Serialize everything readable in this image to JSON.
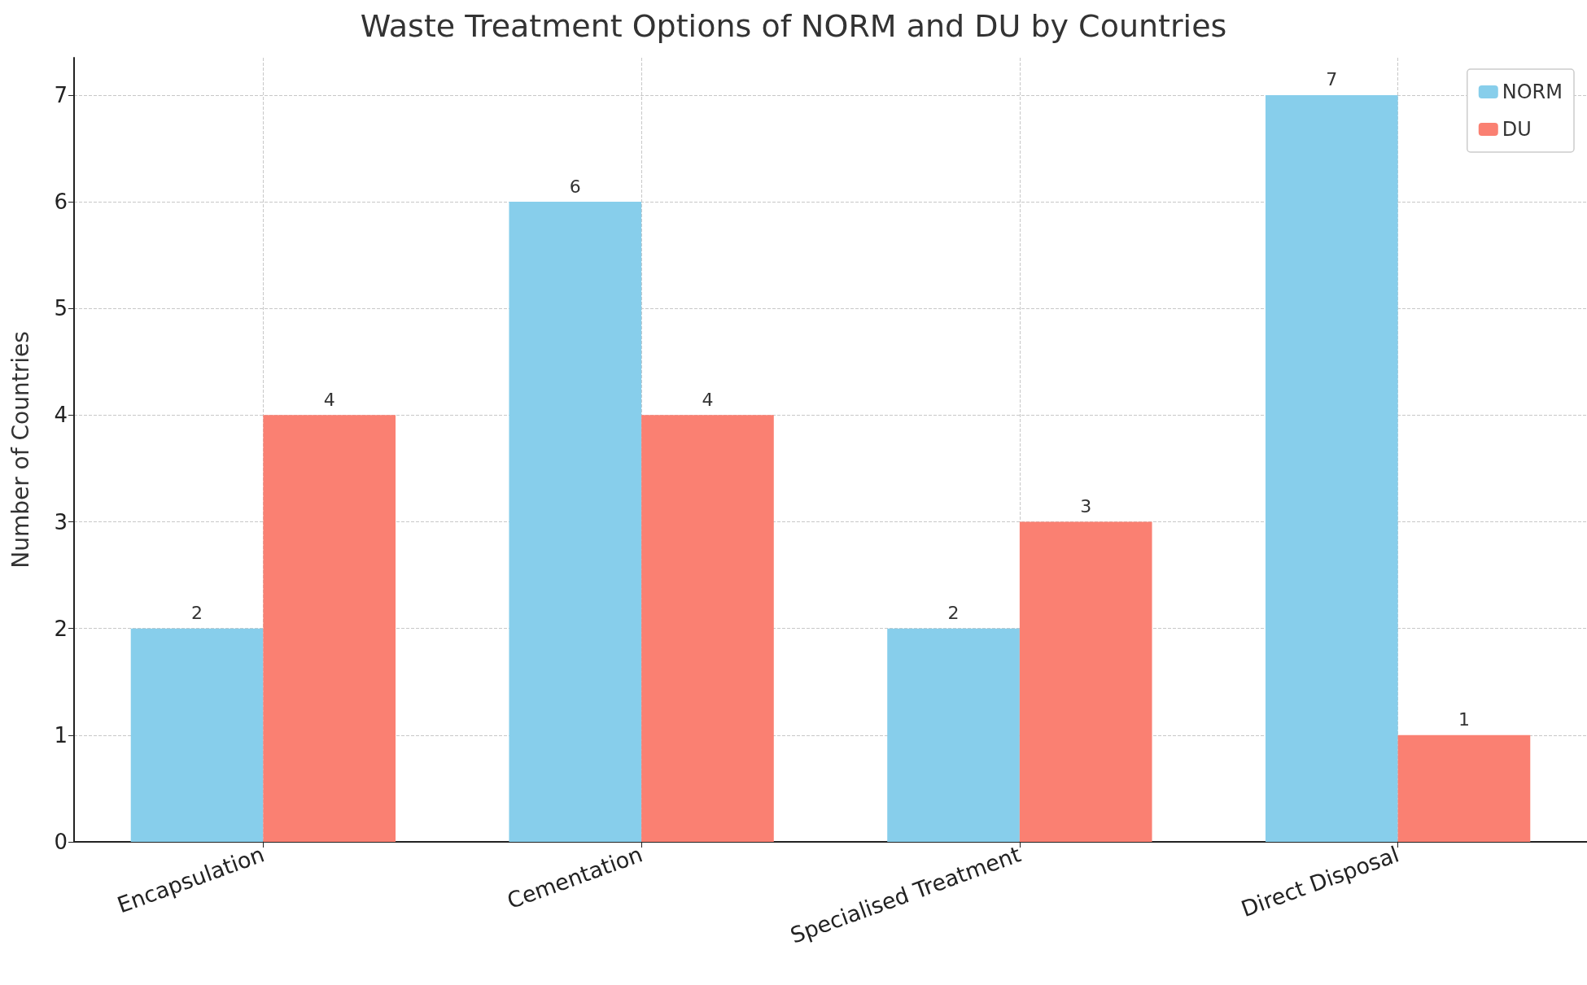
{
  "chart_data": {
    "type": "bar",
    "title": "Waste Treatment Options of NORM and DU by Countries",
    "ylabel": "Number of Countries",
    "categories": [
      "Encapsulation",
      "Cementation",
      "Specialised Treatment",
      "Direct Disposal"
    ],
    "series": [
      {
        "name": "NORM",
        "color": "#87ceeb",
        "values": [
          2,
          6,
          2,
          7
        ]
      },
      {
        "name": "DU",
        "color": "#fa8072",
        "values": [
          4,
          4,
          3,
          1
        ]
      }
    ],
    "ylim": [
      0,
      7.35
    ],
    "yticks": [
      0,
      1,
      2,
      3,
      4,
      5,
      6,
      7
    ],
    "grid": true,
    "legend": "top right",
    "data_labels": true
  }
}
